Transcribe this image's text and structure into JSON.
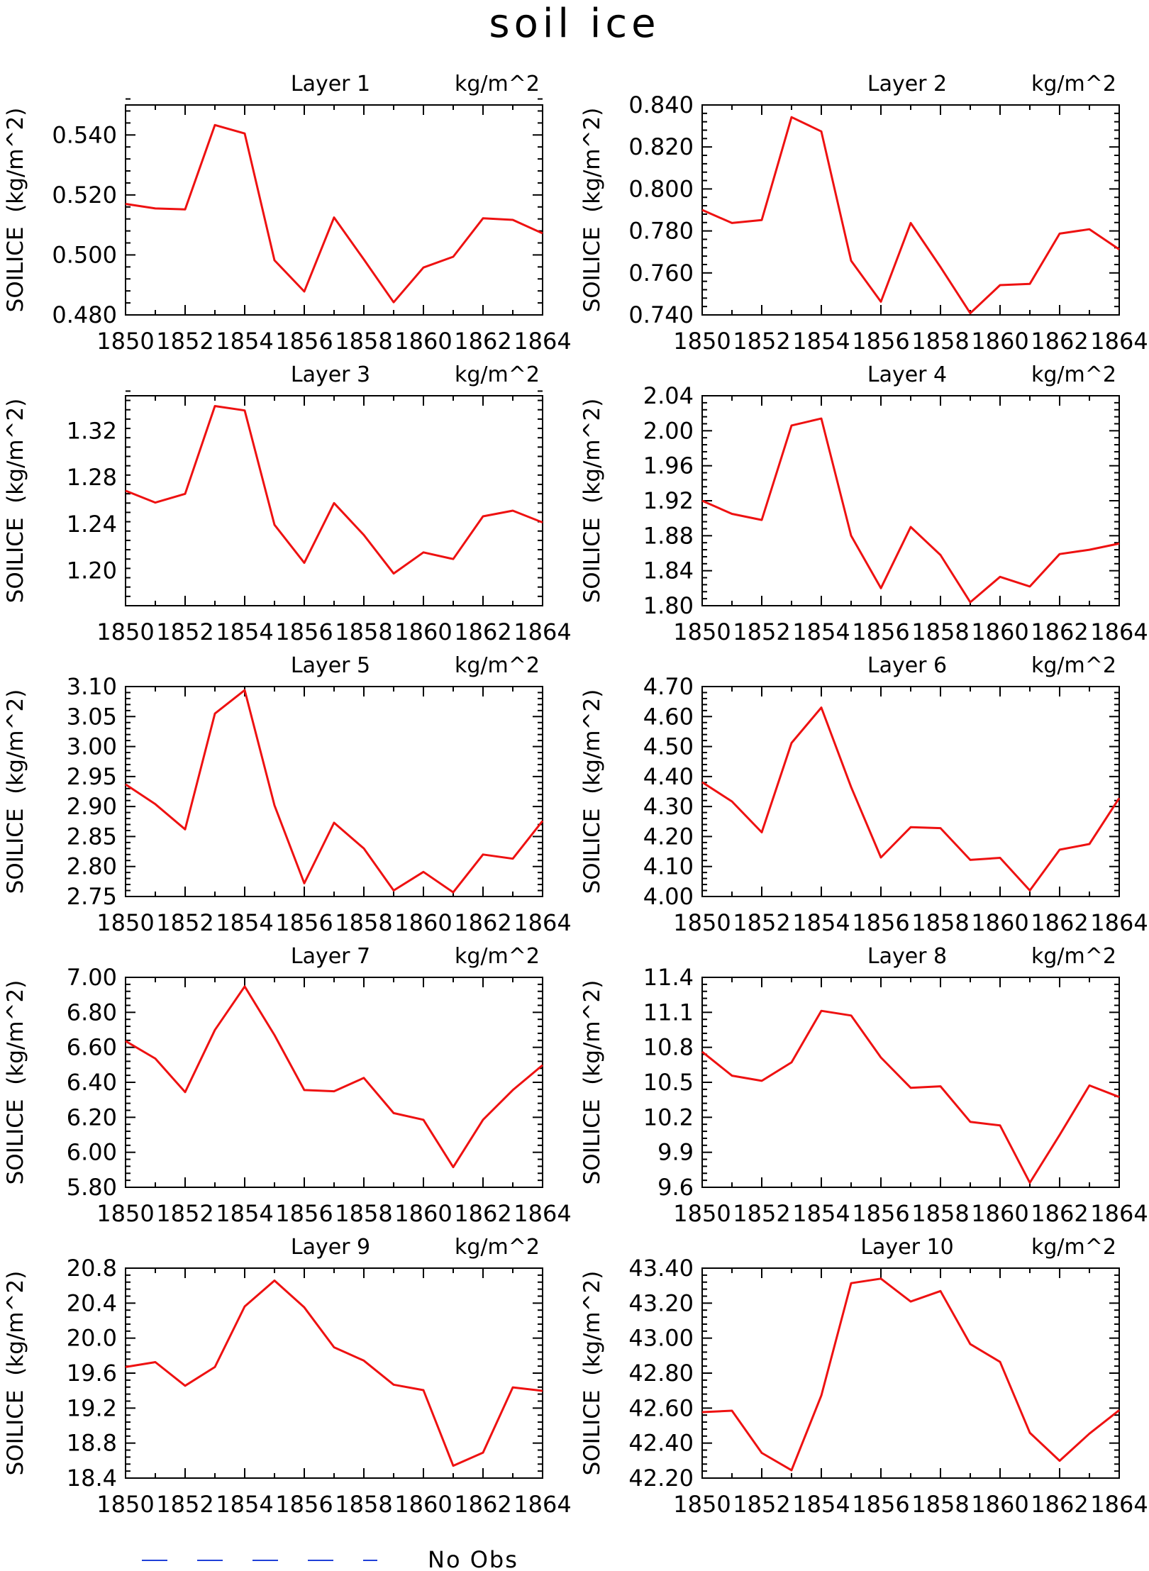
{
  "title": "soil ice",
  "legend": {
    "label": "No Obs",
    "color": "#1f3fd8",
    "line_style": "dashed"
  },
  "series_color": "#ee1111",
  "chart_data": [
    {
      "type": "line",
      "title": "Layer 1",
      "units": "kg/m^2",
      "ylabel": "SOILICE  (kg/m^2)",
      "x": [
        1850,
        1851,
        1852,
        1853,
        1854,
        1855,
        1856,
        1857,
        1858,
        1859,
        1860,
        1861,
        1862,
        1863,
        1864
      ],
      "xticks": [
        "1850",
        "1852",
        "1854",
        "1856",
        "1858",
        "1860",
        "1862",
        "1864"
      ],
      "ylim": [
        0.48,
        0.55
      ],
      "yticks": [
        "0.480",
        "0.500",
        "0.520",
        "0.540"
      ],
      "values": [
        0.517,
        0.5155,
        0.5152,
        0.5433,
        0.5405,
        0.4982,
        0.4878,
        0.5125,
        0.4985,
        0.4842,
        0.4958,
        0.4994,
        0.5122,
        0.5117,
        0.5072
      ]
    },
    {
      "type": "line",
      "title": "Layer 2",
      "units": "kg/m^2",
      "ylabel": "SOILICE  (kg/m^2)",
      "x": [
        1850,
        1851,
        1852,
        1853,
        1854,
        1855,
        1856,
        1857,
        1858,
        1859,
        1860,
        1861,
        1862,
        1863,
        1864
      ],
      "xticks": [
        "1850",
        "1852",
        "1854",
        "1856",
        "1858",
        "1860",
        "1862",
        "1864"
      ],
      "ylim": [
        0.74,
        0.84
      ],
      "yticks": [
        "0.740",
        "0.760",
        "0.780",
        "0.800",
        "0.820",
        "0.840"
      ],
      "values": [
        0.79,
        0.7838,
        0.7852,
        0.8342,
        0.8274,
        0.7658,
        0.7463,
        0.7838,
        0.7628,
        0.7408,
        0.7542,
        0.7548,
        0.7787,
        0.7808,
        0.7712
      ]
    },
    {
      "type": "line",
      "title": "Layer 3",
      "units": "kg/m^2",
      "ylabel": "SOILICE  (kg/m^2)",
      "x": [
        1850,
        1851,
        1852,
        1853,
        1854,
        1855,
        1856,
        1857,
        1858,
        1859,
        1860,
        1861,
        1862,
        1863,
        1864
      ],
      "xticks": [
        "1850",
        "1852",
        "1854",
        "1856",
        "1858",
        "1860",
        "1862",
        "1864"
      ],
      "ylim": [
        1.17,
        1.35
      ],
      "yticks": [
        "1.20",
        "1.24",
        "1.28",
        "1.32"
      ],
      "values": [
        1.2686,
        1.2584,
        1.2659,
        1.3412,
        1.3374,
        1.2394,
        1.2067,
        1.258,
        1.2306,
        1.1976,
        1.2157,
        1.21,
        1.2466,
        1.2515,
        1.2414
      ]
    },
    {
      "type": "line",
      "title": "Layer 4",
      "units": "kg/m^2",
      "ylabel": "SOILICE  (kg/m^2)",
      "x": [
        1850,
        1851,
        1852,
        1853,
        1854,
        1855,
        1856,
        1857,
        1858,
        1859,
        1860,
        1861,
        1862,
        1863,
        1864
      ],
      "xticks": [
        "1850",
        "1852",
        "1854",
        "1856",
        "1858",
        "1860",
        "1862",
        "1864"
      ],
      "ylim": [
        1.8,
        2.04
      ],
      "yticks": [
        "1.80",
        "1.84",
        "1.88",
        "1.92",
        "1.96",
        "2.00",
        "2.04"
      ],
      "values": [
        1.92,
        1.905,
        1.898,
        2.006,
        2.014,
        1.88,
        1.82,
        1.89,
        1.858,
        1.804,
        1.833,
        1.822,
        1.859,
        1.864,
        1.871
      ]
    },
    {
      "type": "line",
      "title": "Layer 5",
      "units": "kg/m^2",
      "ylabel": "SOILICE  (kg/m^2)",
      "x": [
        1850,
        1851,
        1852,
        1853,
        1854,
        1855,
        1856,
        1857,
        1858,
        1859,
        1860,
        1861,
        1862,
        1863,
        1864
      ],
      "xticks": [
        "1850",
        "1852",
        "1854",
        "1856",
        "1858",
        "1860",
        "1862",
        "1864"
      ],
      "ylim": [
        2.75,
        3.1
      ],
      "yticks": [
        "2.75",
        "2.80",
        "2.85",
        "2.90",
        "2.95",
        "3.00",
        "3.05",
        "3.10"
      ],
      "values": [
        2.937,
        2.904,
        2.862,
        3.055,
        3.094,
        2.902,
        2.772,
        2.873,
        2.83,
        2.76,
        2.791,
        2.757,
        2.82,
        2.813,
        2.876
      ]
    },
    {
      "type": "line",
      "title": "Layer 6",
      "units": "kg/m^2",
      "ylabel": "SOILICE  (kg/m^2)",
      "x": [
        1850,
        1851,
        1852,
        1853,
        1854,
        1855,
        1856,
        1857,
        1858,
        1859,
        1860,
        1861,
        1862,
        1863,
        1864
      ],
      "xticks": [
        "1850",
        "1852",
        "1854",
        "1856",
        "1858",
        "1860",
        "1862",
        "1864"
      ],
      "ylim": [
        4.0,
        4.7
      ],
      "yticks": [
        "4.00",
        "4.10",
        "4.20",
        "4.30",
        "4.40",
        "4.50",
        "4.60",
        "4.70"
      ],
      "values": [
        4.381,
        4.317,
        4.214,
        4.512,
        4.63,
        4.365,
        4.13,
        4.231,
        4.228,
        4.122,
        4.129,
        4.02,
        4.156,
        4.175,
        4.328
      ]
    },
    {
      "type": "line",
      "title": "Layer 7",
      "units": "kg/m^2",
      "ylabel": "SOILICE  (kg/m^2)",
      "x": [
        1850,
        1851,
        1852,
        1853,
        1854,
        1855,
        1856,
        1857,
        1858,
        1859,
        1860,
        1861,
        1862,
        1863,
        1864
      ],
      "xticks": [
        "1850",
        "1852",
        "1854",
        "1856",
        "1858",
        "1860",
        "1862",
        "1864"
      ],
      "ylim": [
        5.8,
        7.0
      ],
      "yticks": [
        "5.80",
        "6.00",
        "6.20",
        "6.40",
        "6.60",
        "6.80",
        "7.00"
      ],
      "values": [
        6.636,
        6.536,
        6.344,
        6.699,
        6.948,
        6.67,
        6.356,
        6.349,
        6.425,
        6.224,
        6.186,
        5.915,
        6.186,
        6.356,
        6.498
      ]
    },
    {
      "type": "line",
      "title": "Layer 8",
      "units": "kg/m^2",
      "ylabel": "SOILICE  (kg/m^2)",
      "x": [
        1850,
        1851,
        1852,
        1853,
        1854,
        1855,
        1856,
        1857,
        1858,
        1859,
        1860,
        1861,
        1862,
        1863,
        1864
      ],
      "xticks": [
        "1850",
        "1852",
        "1854",
        "1856",
        "1858",
        "1860",
        "1862",
        "1864"
      ],
      "ylim": [
        9.6,
        11.4
      ],
      "yticks": [
        "9.6",
        "9.9",
        "10.2",
        "10.5",
        "10.8",
        "11.1",
        "11.4"
      ],
      "values": [
        10.762,
        10.557,
        10.513,
        10.671,
        11.113,
        11.073,
        10.713,
        10.453,
        10.466,
        10.161,
        10.13,
        9.639,
        10.049,
        10.473,
        10.374
      ]
    },
    {
      "type": "line",
      "title": "Layer 9",
      "units": "kg/m^2",
      "ylabel": "SOILICE  (kg/m^2)",
      "x": [
        1850,
        1851,
        1852,
        1853,
        1854,
        1855,
        1856,
        1857,
        1858,
        1859,
        1860,
        1861,
        1862,
        1863,
        1864
      ],
      "xticks": [
        "1850",
        "1852",
        "1854",
        "1856",
        "1858",
        "1860",
        "1862",
        "1864"
      ],
      "ylim": [
        18.4,
        20.8
      ],
      "yticks": [
        "18.4",
        "18.8",
        "19.2",
        "19.6",
        "20.0",
        "20.4",
        "20.8"
      ],
      "values": [
        19.67,
        19.726,
        19.456,
        19.67,
        20.362,
        20.658,
        20.352,
        19.895,
        19.743,
        19.468,
        19.405,
        18.541,
        18.691,
        19.437,
        19.397
      ]
    },
    {
      "type": "line",
      "title": "Layer 10",
      "units": "kg/m^2",
      "ylabel": "SOILICE  (kg/m^2)",
      "x": [
        1850,
        1851,
        1852,
        1853,
        1854,
        1855,
        1856,
        1857,
        1858,
        1859,
        1860,
        1861,
        1862,
        1863,
        1864
      ],
      "xticks": [
        "1850",
        "1852",
        "1854",
        "1856",
        "1858",
        "1860",
        "1862",
        "1864"
      ],
      "ylim": [
        42.2,
        43.4
      ],
      "yticks": [
        "42.20",
        "42.40",
        "42.60",
        "42.80",
        "43.00",
        "43.20",
        "43.40"
      ],
      "values": [
        42.577,
        42.585,
        42.344,
        42.245,
        42.672,
        43.314,
        43.34,
        43.209,
        43.269,
        42.966,
        42.864,
        42.459,
        42.299,
        42.454,
        42.588
      ]
    }
  ]
}
